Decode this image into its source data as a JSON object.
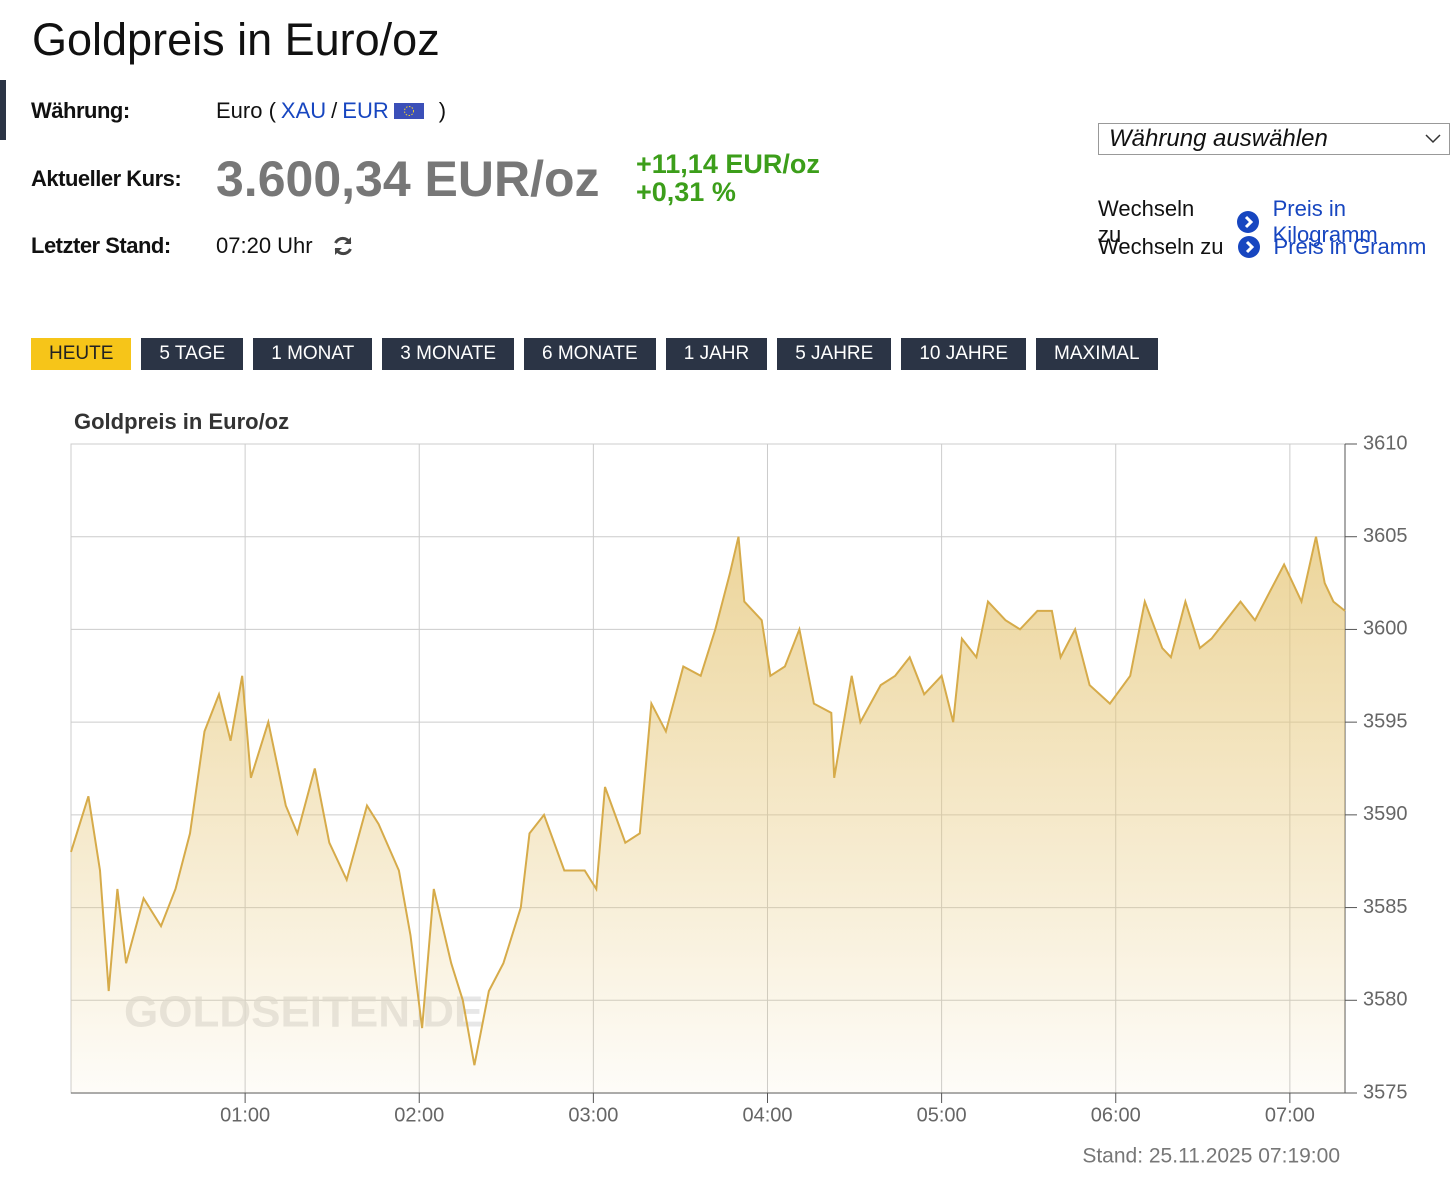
{
  "page": {
    "title": "Goldpreis in Euro/oz",
    "currency_label": "Währung:",
    "currency_prefix": "Euro (",
    "currency_xau": "XAU",
    "currency_sep": "/",
    "currency_eur": "EUR",
    "currency_suffix": ")",
    "price_label": "Aktueller Kurs:",
    "price": "3.600,34 EUR/oz",
    "change_abs": "+11,14 EUR/oz",
    "change_pct": "+0,31 %",
    "updated_label": "Letzter Stand:",
    "updated": "07:20 Uhr",
    "select": "Währung auswählen",
    "links": [
      {
        "prefix": "Wechseln zu",
        "label": "Preis in Kilogramm"
      },
      {
        "prefix": "Wechseln zu",
        "label": "Preis in Gramm"
      }
    ],
    "tabs": [
      "HEUTE",
      "5 TAGE",
      "1 MONAT",
      "3 MONATE",
      "6 MONATE",
      "1 JAHR",
      "5 JAHRE",
      "10 JAHRE",
      "MAXIMAL"
    ]
  },
  "chart_data": {
    "type": "area",
    "title": "Goldpreis in Euro/oz",
    "footer": "Stand: 25.11.2025 07:19:00",
    "watermark": "GOLDSEITEN.DE",
    "color": "#d6ab4a",
    "grid": true,
    "x": [
      0,
      6,
      10,
      13,
      16,
      19,
      25,
      31,
      36,
      41,
      46,
      51,
      55,
      59,
      62,
      68,
      74,
      78,
      84,
      89,
      95,
      102,
      106,
      113,
      117,
      121,
      125,
      131,
      135,
      139,
      144,
      149,
      155,
      158,
      163,
      170,
      177,
      181,
      184,
      191,
      196,
      200,
      205,
      211,
      217,
      222,
      227,
      230,
      232,
      238,
      241,
      246,
      251,
      256,
      262,
      263,
      269,
      272,
      279,
      284,
      289,
      294,
      300,
      304,
      307,
      312,
      316,
      322,
      327,
      333,
      338,
      341,
      346,
      351,
      358,
      365,
      370,
      376,
      379,
      384,
      389,
      393,
      398,
      403,
      408,
      413,
      418,
      424,
      429,
      432,
      435,
      439
    ],
    "values": [
      3588,
      3591,
      3587,
      3580.5,
      3586,
      3582,
      3585.5,
      3584,
      3586,
      3589,
      3594.5,
      3596.5,
      3594,
      3597.5,
      3592,
      3595,
      3590.5,
      3589,
      3592.5,
      3588.5,
      3586.5,
      3590.5,
      3589.5,
      3587,
      3583.5,
      3578.5,
      3586,
      3582,
      3580,
      3576.5,
      3580.5,
      3582,
      3585,
      3589,
      3590,
      3587,
      3587,
      3586,
      3591.5,
      3588.5,
      3589,
      3596,
      3594.5,
      3598,
      3597.5,
      3600,
      3603,
      3605,
      3601.5,
      3600.5,
      3597.5,
      3598,
      3600,
      3596,
      3595.5,
      3592,
      3597.5,
      3595,
      3597,
      3597.5,
      3598.5,
      3596.5,
      3597.5,
      3595,
      3599.5,
      3598.5,
      3601.5,
      3600.5,
      3600,
      3601,
      3601,
      3598.5,
      3600,
      3597,
      3596,
      3597.5,
      3601.5,
      3599,
      3598.5,
      3601.5,
      3599,
      3599.5,
      3600.5,
      3601.5,
      3600.5,
      3602,
      3603.5,
      3601.5,
      3605,
      3602.5,
      3601.5,
      3601
    ],
    "xlim": [
      0,
      439
    ],
    "xticks": [
      {
        "value": 60,
        "label": "01:00"
      },
      {
        "value": 120,
        "label": "02:00"
      },
      {
        "value": 180,
        "label": "03:00"
      },
      {
        "value": 240,
        "label": "04:00"
      },
      {
        "value": 300,
        "label": "05:00"
      },
      {
        "value": 360,
        "label": "06:00"
      },
      {
        "value": 420,
        "label": "07:00"
      }
    ],
    "ylim": [
      3575,
      3610
    ],
    "yticks": [
      3575,
      3580,
      3585,
      3590,
      3595,
      3600,
      3605,
      3610
    ]
  }
}
